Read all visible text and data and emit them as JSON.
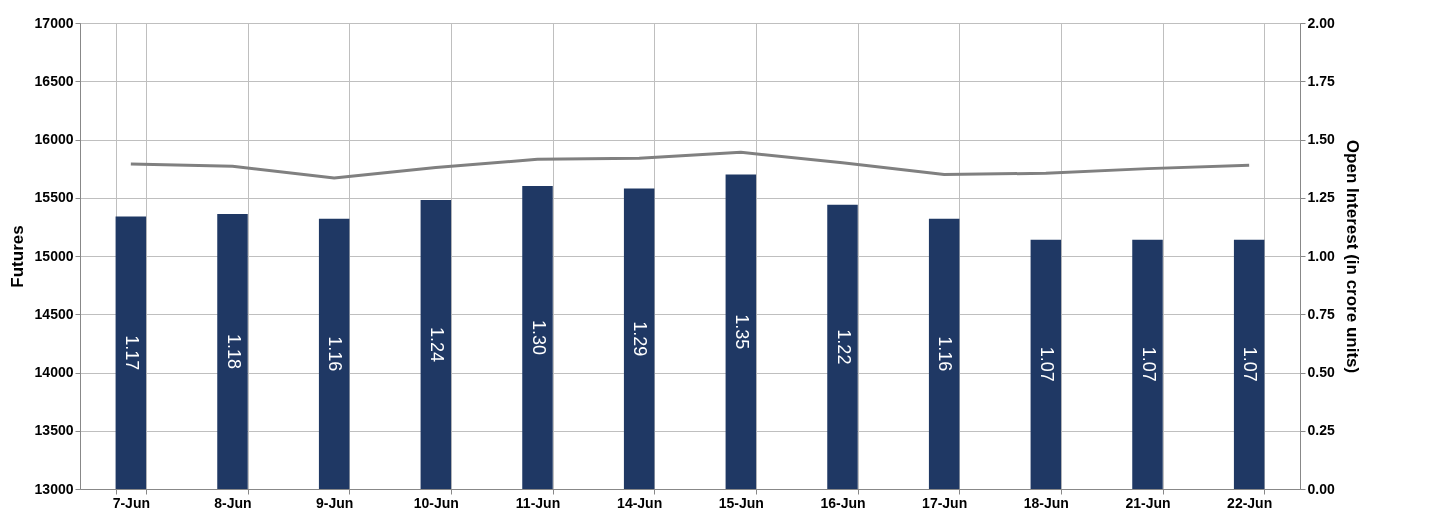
{
  "chart_data": {
    "type": "bar",
    "ylabel": "Futures",
    "y2label": "Open Interest (in crore units)",
    "categories": [
      "7-Jun",
      "8-Jun",
      "9-Jun",
      "10-Jun",
      "11-Jun",
      "14-Jun",
      "15-Jun",
      "16-Jun",
      "17-Jun",
      "18-Jun",
      "21-Jun",
      "22-Jun"
    ],
    "series": [
      {
        "axis": "y2",
        "color": "#1f3864",
        "values": [
          1.17,
          1.18,
          1.16,
          1.24,
          1.3,
          1.29,
          1.35,
          1.22,
          1.16,
          1.07,
          1.07,
          1.07
        ],
        "value_labels": [
          "1.17",
          "1.18",
          "1.16",
          "1.24",
          "1.30",
          "1.29",
          "1.35",
          "1.22",
          "1.16",
          "1.07",
          "1.07",
          "1.07"
        ]
      },
      {
        "type": "line",
        "color": "#808080",
        "values": [
          15790,
          15770,
          15670,
          15760,
          15830,
          15840,
          15890,
          15800,
          15700,
          15710,
          15750,
          15780
        ]
      }
    ],
    "ylim": [
      13000,
      17000
    ],
    "yticks": [
      13000,
      13500,
      14000,
      14500,
      15000,
      15500,
      16000,
      16500,
      17000
    ],
    "y2lim": [
      0,
      2
    ],
    "y2ticks": [
      {
        "value": 0,
        "label": "0.00"
      },
      {
        "value": 0.25,
        "label": "0.25"
      },
      {
        "value": 0.5,
        "label": "0.50"
      },
      {
        "value": 0.75,
        "label": "0.75"
      },
      {
        "value": 1,
        "label": "1.00"
      },
      {
        "value": 1.25,
        "label": "1.25"
      },
      {
        "value": 1.5,
        "label": "1.50"
      },
      {
        "value": 1.75,
        "label": "1.75"
      },
      {
        "value": 2,
        "label": "2.00"
      }
    ],
    "grid": true,
    "marker": "none",
    "line_style": "solid"
  }
}
